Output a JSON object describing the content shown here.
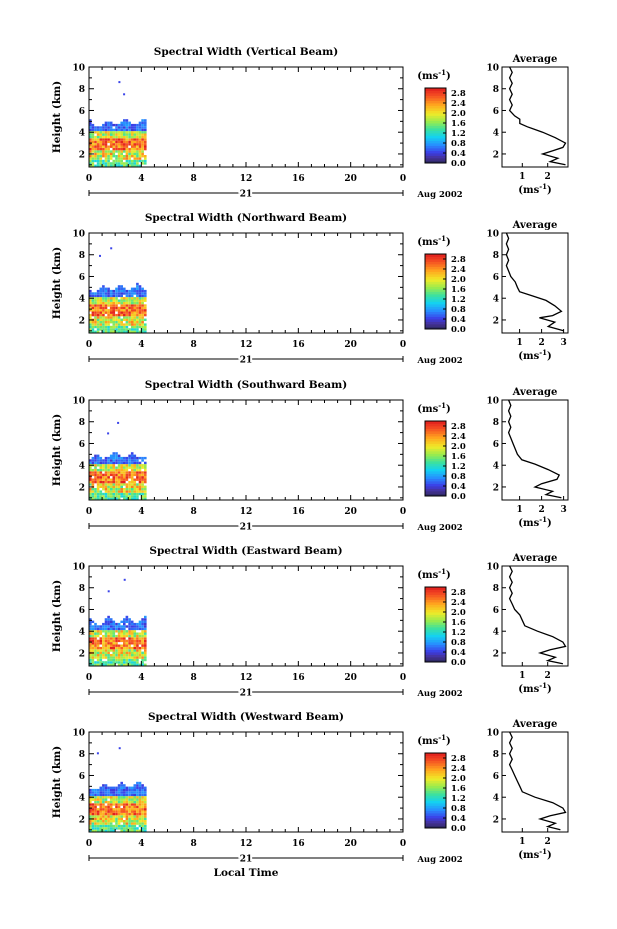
{
  "page": {
    "xlabel": "Local Time",
    "date_label": "Aug 2002",
    "day_label": "21",
    "unit_label": "(ms",
    "unit_exp": "-1",
    "height_label": "Height (km)",
    "average_title": "Average"
  },
  "chart_data": [
    {
      "type": "heatmap",
      "title": "Spectral Width (Vertical Beam)",
      "xlabel": "",
      "ylabel": "Height (km)",
      "x_ticks": [
        "0",
        "4",
        "8",
        "12",
        "16",
        "20",
        "0"
      ],
      "y_ticks": [
        "2",
        "4",
        "6",
        "8",
        "10"
      ],
      "xlim": [
        0,
        24
      ],
      "ylim": [
        0.8,
        10
      ],
      "colorbar": {
        "label": "(ms-1)",
        "ticks": [
          "0.0",
          "0.4",
          "0.8",
          "1.2",
          "1.6",
          "2.0",
          "2.4",
          "2.8"
        ],
        "range": [
          0,
          3
        ]
      },
      "data_extent": {
        "t_start": 0,
        "t_end": 4.3,
        "h_min": 0.8,
        "h_max": 5.2
      },
      "average_profile": {
        "xlabel": "(ms-1)",
        "x_ticks": [
          "1",
          "2"
        ],
        "xlim": [
          0.2,
          2.8
        ],
        "ylim": [
          0.8,
          10
        ],
        "points": [
          [
            0.5,
            10
          ],
          [
            0.6,
            9.5
          ],
          [
            0.5,
            9
          ],
          [
            0.6,
            8.5
          ],
          [
            0.5,
            8
          ],
          [
            0.6,
            7.5
          ],
          [
            0.5,
            7
          ],
          [
            0.6,
            6.5
          ],
          [
            0.5,
            6
          ],
          [
            0.7,
            5.5
          ],
          [
            0.9,
            5.2
          ],
          [
            0.9,
            4.8
          ],
          [
            1.2,
            4.5
          ],
          [
            1.8,
            4
          ],
          [
            2.3,
            3.5
          ],
          [
            2.7,
            3
          ],
          [
            2.6,
            2.6
          ],
          [
            2.2,
            2.3
          ],
          [
            1.8,
            2
          ],
          [
            2.4,
            1.6
          ],
          [
            2.1,
            1.3
          ],
          [
            2.7,
            1
          ]
        ]
      }
    },
    {
      "type": "heatmap",
      "title": "Spectral Width (Northward Beam)",
      "xlabel": "",
      "ylabel": "Height (km)",
      "x_ticks": [
        "0",
        "4",
        "8",
        "12",
        "16",
        "20",
        "0"
      ],
      "y_ticks": [
        "2",
        "4",
        "6",
        "8",
        "10"
      ],
      "xlim": [
        0,
        24
      ],
      "ylim": [
        0.8,
        10
      ],
      "colorbar": {
        "label": "(ms-1)",
        "ticks": [
          "0.0",
          "0.4",
          "0.8",
          "1.2",
          "1.6",
          "2.0",
          "2.4",
          "2.8"
        ],
        "range": [
          0,
          3
        ]
      },
      "data_extent": {
        "t_start": 0,
        "t_end": 4.4,
        "h_min": 0.8,
        "h_max": 5.3
      },
      "average_profile": {
        "xlabel": "(ms-1)",
        "x_ticks": [
          "1",
          "2",
          "3"
        ],
        "xlim": [
          0.2,
          3.2
        ],
        "ylim": [
          0.8,
          10
        ],
        "points": [
          [
            0.4,
            10
          ],
          [
            0.5,
            9.5
          ],
          [
            0.4,
            9
          ],
          [
            0.5,
            8.5
          ],
          [
            0.4,
            8
          ],
          [
            0.5,
            7.5
          ],
          [
            0.4,
            7
          ],
          [
            0.5,
            6.5
          ],
          [
            0.6,
            6
          ],
          [
            0.8,
            5.5
          ],
          [
            0.9,
            5
          ],
          [
            1.0,
            4.6
          ],
          [
            1.6,
            4.2
          ],
          [
            2.2,
            3.8
          ],
          [
            2.6,
            3.3
          ],
          [
            2.9,
            2.8
          ],
          [
            2.5,
            2.4
          ],
          [
            1.9,
            2.2
          ],
          [
            2.6,
            1.8
          ],
          [
            2.3,
            1.4
          ],
          [
            3.0,
            1
          ]
        ]
      }
    },
    {
      "type": "heatmap",
      "title": "Spectral Width (Southward Beam)",
      "xlabel": "",
      "ylabel": "Height (km)",
      "x_ticks": [
        "0",
        "4",
        "8",
        "12",
        "16",
        "20",
        "0"
      ],
      "y_ticks": [
        "2",
        "4",
        "6",
        "8",
        "10"
      ],
      "xlim": [
        0,
        24
      ],
      "ylim": [
        0.8,
        10
      ],
      "colorbar": {
        "label": "(ms-1)",
        "ticks": [
          "0.0",
          "0.4",
          "0.8",
          "1.2",
          "1.6",
          "2.0",
          "2.4",
          "2.8"
        ],
        "range": [
          0,
          3
        ]
      },
      "data_extent": {
        "t_start": 0,
        "t_end": 4.4,
        "h_min": 0.8,
        "h_max": 5.2
      },
      "average_profile": {
        "xlabel": "(ms-1)",
        "x_ticks": [
          "1",
          "2",
          "3"
        ],
        "xlim": [
          0.2,
          3.2
        ],
        "ylim": [
          0.8,
          10
        ],
        "points": [
          [
            0.5,
            10
          ],
          [
            0.6,
            9.5
          ],
          [
            0.5,
            9
          ],
          [
            0.6,
            8.5
          ],
          [
            0.5,
            8
          ],
          [
            0.6,
            7.5
          ],
          [
            0.5,
            7
          ],
          [
            0.6,
            6.5
          ],
          [
            0.7,
            6
          ],
          [
            0.8,
            5.5
          ],
          [
            0.9,
            5
          ],
          [
            1.1,
            4.5
          ],
          [
            1.7,
            4.1
          ],
          [
            2.3,
            3.6
          ],
          [
            2.8,
            3.1
          ],
          [
            2.7,
            2.7
          ],
          [
            2.0,
            2.3
          ],
          [
            1.7,
            2
          ],
          [
            2.5,
            1.6
          ],
          [
            2.2,
            1.3
          ],
          [
            2.9,
            1
          ]
        ]
      }
    },
    {
      "type": "heatmap",
      "title": "Spectral Width (Eastward Beam)",
      "xlabel": "",
      "ylabel": "Height (km)",
      "x_ticks": [
        "0",
        "4",
        "8",
        "12",
        "16",
        "20",
        "0"
      ],
      "y_ticks": [
        "2",
        "4",
        "6",
        "8",
        "10"
      ],
      "xlim": [
        0,
        24
      ],
      "ylim": [
        0.8,
        10
      ],
      "colorbar": {
        "label": "(ms-1)",
        "ticks": [
          "0.0",
          "0.4",
          "0.8",
          "1.2",
          "1.6",
          "2.0",
          "2.4",
          "2.8"
        ],
        "range": [
          0,
          3
        ]
      },
      "data_extent": {
        "t_start": 0,
        "t_end": 4.4,
        "h_min": 0.8,
        "h_max": 5.3
      },
      "average_profile": {
        "xlabel": "(ms-1)",
        "x_ticks": [
          "1",
          "2"
        ],
        "xlim": [
          0.2,
          2.8
        ],
        "ylim": [
          0.8,
          10
        ],
        "points": [
          [
            0.5,
            10
          ],
          [
            0.6,
            9.5
          ],
          [
            0.5,
            9
          ],
          [
            0.6,
            8.5
          ],
          [
            0.5,
            8
          ],
          [
            0.6,
            7.5
          ],
          [
            0.5,
            7
          ],
          [
            0.6,
            6.5
          ],
          [
            0.7,
            6
          ],
          [
            0.9,
            5.5
          ],
          [
            1.0,
            5
          ],
          [
            1.1,
            4.5
          ],
          [
            1.6,
            4
          ],
          [
            2.2,
            3.5
          ],
          [
            2.6,
            3
          ],
          [
            2.7,
            2.6
          ],
          [
            2.1,
            2.3
          ],
          [
            1.7,
            2
          ],
          [
            2.3,
            1.6
          ],
          [
            2.0,
            1.3
          ],
          [
            2.6,
            1
          ]
        ]
      }
    },
    {
      "type": "heatmap",
      "title": "Spectral Width (Westward Beam)",
      "xlabel": "Local Time",
      "ylabel": "Height (km)",
      "x_ticks": [
        "0",
        "4",
        "8",
        "12",
        "16",
        "20",
        "0"
      ],
      "y_ticks": [
        "2",
        "4",
        "6",
        "8",
        "10"
      ],
      "xlim": [
        0,
        24
      ],
      "ylim": [
        0.8,
        10
      ],
      "colorbar": {
        "label": "(ms-1)",
        "ticks": [
          "0.0",
          "0.4",
          "0.8",
          "1.2",
          "1.6",
          "2.0",
          "2.4",
          "2.8"
        ],
        "range": [
          0,
          3
        ]
      },
      "data_extent": {
        "t_start": 0,
        "t_end": 4.4,
        "h_min": 0.8,
        "h_max": 5.4
      },
      "average_profile": {
        "xlabel": "(ms-1)",
        "x_ticks": [
          "1",
          "2"
        ],
        "xlim": [
          0.2,
          2.8
        ],
        "ylim": [
          0.8,
          10
        ],
        "points": [
          [
            0.5,
            10
          ],
          [
            0.6,
            9.5
          ],
          [
            0.5,
            9
          ],
          [
            0.6,
            8.5
          ],
          [
            0.5,
            8
          ],
          [
            0.6,
            7.5
          ],
          [
            0.5,
            7
          ],
          [
            0.6,
            6.5
          ],
          [
            0.7,
            6
          ],
          [
            0.8,
            5.5
          ],
          [
            0.9,
            5
          ],
          [
            1.0,
            4.5
          ],
          [
            1.5,
            4
          ],
          [
            2.2,
            3.5
          ],
          [
            2.6,
            3
          ],
          [
            2.7,
            2.6
          ],
          [
            2.1,
            2.3
          ],
          [
            1.7,
            2
          ],
          [
            2.3,
            1.6
          ],
          [
            2.0,
            1.3
          ],
          [
            2.5,
            1
          ]
        ]
      }
    }
  ]
}
